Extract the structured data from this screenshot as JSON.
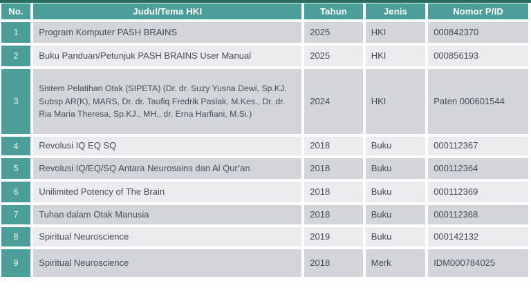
{
  "table": {
    "columns": [
      {
        "key": "no",
        "label": "No."
      },
      {
        "key": "judul",
        "label": "Judul/Tema HKI"
      },
      {
        "key": "tahun",
        "label": "Tahun"
      },
      {
        "key": "jenis",
        "label": "Jenis"
      },
      {
        "key": "nomor",
        "label": "Nomor P/ID"
      }
    ],
    "rows": [
      {
        "no": "1",
        "judul": "Program Komputer PASH BRAINS",
        "tahun": "2025",
        "jenis": "HKI",
        "nomor": "000842370"
      },
      {
        "no": "2",
        "judul": "Buku Panduan/Petunjuk PASH BRAINS User Manual",
        "tahun": "2025",
        "jenis": "HKI",
        "nomor": "000856193"
      },
      {
        "no": "3",
        "judul": "Sistem Pelatihan Otak (SIPETA) (Dr. dr. Suzy Yusna Dewi, Sp.KJ, Subsp AR(K), MARS, Dr. dr. Taufiq Fredrik Pasiak, M.Kes., Dr. dr. Ria Maria Theresa, Sp.KJ., MH., dr. Erna Harfiani, M.Si.)",
        "tahun": "2024",
        "jenis": "HKI",
        "nomor": "Paten 000601544"
      },
      {
        "no": "4",
        "judul": "Revolusi IQ EQ SQ",
        "tahun": "2018",
        "jenis": "Buku",
        "nomor": "000112367"
      },
      {
        "no": "5",
        "judul": "Revolusi IQ/EQ/SQ Antara Neurosains dan Al Qur’an",
        "tahun": "2018",
        "jenis": "Buku",
        "nomor": "000112364"
      },
      {
        "no": "6",
        "judul": "Unilimited Potency of The Brain",
        "tahun": "2018",
        "jenis": "Buku",
        "nomor": "000112369"
      },
      {
        "no": "7",
        "judul": "Tuhan dalam Otak Manusia",
        "tahun": "2018",
        "jenis": "Buku",
        "nomor": "000112368"
      },
      {
        "no": "8",
        "judul": "Spiritual Neuroscience",
        "tahun": "2019",
        "jenis": "Buku",
        "nomor": "000142132"
      },
      {
        "no": "9",
        "judul": "Spiritual Neuroscience",
        "tahun": "2018",
        "jenis": "Merk",
        "nomor": "IDM000784025"
      }
    ]
  },
  "colors": {
    "top_strip": "#26695f",
    "header_bg": "#4b9e9a",
    "number_cell_bg": "#4b9e9a",
    "row_dark": "#d2d5da",
    "row_light": "#e9ebee",
    "header_text": "#ffffff",
    "body_text": "#474c54"
  }
}
